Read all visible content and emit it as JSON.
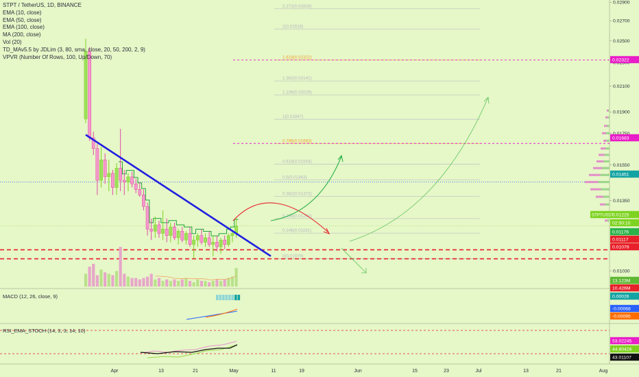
{
  "symbol_line": "STPT / TetherUS, 1D, BINANCE",
  "indicators": [
    "EMA (10, close)",
    "EMA (50, close)",
    "EMA (100, close)",
    "MA (200, close)",
    "Vol (20)",
    "TD_MAv5.5 by JDLim (3, 80, sma, close, 20, 50, 200, 2, 9)",
    "VPVR (Number Of Rows, 100, Up/Down, 70)"
  ],
  "macd_label": "MACD (12, 26, close, 9)",
  "rsi_label": "RSI_EMA_STOCH (14, 3, 3, 14, 10)",
  "price_axis_ticks": [
    "0.02900",
    "0.02700",
    "0.02500",
    "0.02300",
    "0.02100",
    "0.01900",
    "0.01750",
    "0.01550",
    "0.01350",
    "0.01030",
    "0.00970"
  ],
  "price_tags": [
    {
      "text": "0.02322",
      "color": "#e91ec8"
    },
    {
      "text": "0.01683",
      "color": "#e91ec8"
    },
    {
      "text": "0.01451",
      "color": "#14a3a3"
    },
    {
      "text": "0.01225",
      "color": "#7ed321",
      "ticker": "STPTUSDT"
    },
    {
      "text": "02:50:10",
      "color": "#7ed321"
    },
    {
      "text": "0.01176",
      "color": "#2bb34a"
    },
    {
      "text": "0.01117",
      "color": "#e8202a"
    },
    {
      "text": "0.01079",
      "color": "#e8202a"
    },
    {
      "text": "13.123M",
      "color": "#5fb833"
    },
    {
      "text": "10.426M",
      "color": "#e8202a"
    }
  ],
  "macd_tags": [
    {
      "text": "0.00026",
      "color": "#14a3a3"
    },
    {
      "text": "-0.00068",
      "color": "#2962ff"
    },
    {
      "text": "-0.00095",
      "color": "#ff6d00"
    }
  ],
  "rsi_tags": [
    {
      "text": "53.02245",
      "color": "#e91ec8"
    },
    {
      "text": "44.80426",
      "color": "#7ed321"
    },
    {
      "text": "43.01107",
      "color": "#111111"
    }
  ],
  "time_axis": [
    "Apr",
    "13",
    "21",
    "May",
    "11",
    "19",
    "Jun",
    "15",
    "23",
    "Jul",
    "13",
    "21",
    "Aug"
  ],
  "fib_levels": [
    {
      "ratio": "2.272",
      "price": "0.02828",
      "color": "#b5b8bf"
    },
    {
      "ratio": "2",
      "price": "0.02616",
      "color": "#b5b8bf"
    },
    {
      "ratio": "1.618",
      "price": "0.02322",
      "color": "#f0a030"
    },
    {
      "ratio": "1.382",
      "price": "0.02141",
      "color": "#b5b8bf"
    },
    {
      "ratio": "1.236",
      "price": "0.02029",
      "color": "#b5b8bf"
    },
    {
      "ratio": "1",
      "price": "0.01847",
      "color": "#b5b8bf"
    },
    {
      "ratio": "0.786",
      "price": "0.01683",
      "color": "#f0a030"
    },
    {
      "ratio": "0.618",
      "price": "0.01554",
      "color": "#b5b8bf"
    },
    {
      "ratio": "0.5",
      "price": "0.01463",
      "color": "#b5b8bf"
    },
    {
      "ratio": "0.382",
      "price": "0.01372",
      "color": "#b5b8bf"
    },
    {
      "ratio": "0.236",
      "price": "0.01260",
      "color": "#b5b8bf"
    },
    {
      "ratio": "0.146",
      "price": "0.01191",
      "color": "#b5b8bf"
    },
    {
      "ratio": "0",
      "price": "0.01079",
      "color": "#b5b8bf"
    }
  ],
  "chart_data": {
    "type": "candlestick",
    "symbol": "STPT / TetherUS",
    "interval": "1D",
    "exchange": "BINANCE",
    "y_scale": "log",
    "ylim": [
      0.0095,
      0.0292
    ],
    "annotations": {
      "horizontal_levels": [
        {
          "price": 0.02322,
          "style": "dashed",
          "color": "#e91ec8"
        },
        {
          "price": 0.01683,
          "style": "dashed",
          "color": "#e91ec8"
        },
        {
          "price": 0.01451,
          "style": "dotted",
          "color": "#2962ff"
        },
        {
          "price": 0.01117,
          "style": "dashed",
          "color": "#e8202a"
        },
        {
          "price": 0.01079,
          "style": "dashed",
          "color": "#e8202a"
        }
      ],
      "trendline": {
        "from": [
          "2020-03-26",
          0.0174
        ],
        "to": [
          "2020-05-10",
          0.0109
        ],
        "color": "#1f1fe0"
      }
    },
    "candles": [
      {
        "o": 0.0185,
        "h": 0.0252,
        "l": 0.0182,
        "c": 0.024
      },
      {
        "o": 0.024,
        "h": 0.0244,
        "l": 0.017,
        "c": 0.0172
      },
      {
        "o": 0.0172,
        "h": 0.0176,
        "l": 0.0161,
        "c": 0.0165
      },
      {
        "o": 0.0165,
        "h": 0.0168,
        "l": 0.0138,
        "c": 0.0146
      },
      {
        "o": 0.0146,
        "h": 0.0166,
        "l": 0.0142,
        "c": 0.0158
      },
      {
        "o": 0.0158,
        "h": 0.0162,
        "l": 0.0144,
        "c": 0.0148
      },
      {
        "o": 0.0148,
        "h": 0.0158,
        "l": 0.014,
        "c": 0.015
      },
      {
        "o": 0.015,
        "h": 0.0152,
        "l": 0.0138,
        "c": 0.0142
      },
      {
        "o": 0.0142,
        "h": 0.0156,
        "l": 0.0138,
        "c": 0.0153
      },
      {
        "o": 0.0153,
        "h": 0.0178,
        "l": 0.014,
        "c": 0.0146
      },
      {
        "o": 0.0146,
        "h": 0.0152,
        "l": 0.0138,
        "c": 0.0145
      },
      {
        "o": 0.0145,
        "h": 0.015,
        "l": 0.014,
        "c": 0.0148
      },
      {
        "o": 0.0148,
        "h": 0.0151,
        "l": 0.0142,
        "c": 0.0144
      },
      {
        "o": 0.0144,
        "h": 0.0147,
        "l": 0.0139,
        "c": 0.0141
      },
      {
        "o": 0.0141,
        "h": 0.0145,
        "l": 0.0137,
        "c": 0.0138
      },
      {
        "o": 0.0138,
        "h": 0.0141,
        "l": 0.013,
        "c": 0.0132
      },
      {
        "o": 0.0132,
        "h": 0.0134,
        "l": 0.0118,
        "c": 0.0121
      },
      {
        "o": 0.0121,
        "h": 0.0126,
        "l": 0.0116,
        "c": 0.012
      },
      {
        "o": 0.012,
        "h": 0.0127,
        "l": 0.0117,
        "c": 0.0123
      },
      {
        "o": 0.0123,
        "h": 0.0125,
        "l": 0.0117,
        "c": 0.0119
      },
      {
        "o": 0.0119,
        "h": 0.013,
        "l": 0.0116,
        "c": 0.0121
      },
      {
        "o": 0.0121,
        "h": 0.0126,
        "l": 0.0115,
        "c": 0.0118
      },
      {
        "o": 0.0118,
        "h": 0.0124,
        "l": 0.0115,
        "c": 0.0122
      },
      {
        "o": 0.0122,
        "h": 0.0124,
        "l": 0.0116,
        "c": 0.0117
      },
      {
        "o": 0.0117,
        "h": 0.0121,
        "l": 0.0114,
        "c": 0.012
      },
      {
        "o": 0.012,
        "h": 0.0122,
        "l": 0.0115,
        "c": 0.0116
      },
      {
        "o": 0.0116,
        "h": 0.012,
        "l": 0.0114,
        "c": 0.0119
      },
      {
        "o": 0.0119,
        "h": 0.0122,
        "l": 0.0113,
        "c": 0.0114
      },
      {
        "o": 0.0114,
        "h": 0.0118,
        "l": 0.0108,
        "c": 0.0116
      },
      {
        "o": 0.0116,
        "h": 0.0119,
        "l": 0.0113,
        "c": 0.0118
      },
      {
        "o": 0.0118,
        "h": 0.0121,
        "l": 0.0114,
        "c": 0.0115
      },
      {
        "o": 0.0115,
        "h": 0.0119,
        "l": 0.0113,
        "c": 0.0117
      },
      {
        "o": 0.0117,
        "h": 0.012,
        "l": 0.0113,
        "c": 0.0114
      },
      {
        "o": 0.0114,
        "h": 0.0118,
        "l": 0.0109,
        "c": 0.0115
      },
      {
        "o": 0.0115,
        "h": 0.0118,
        "l": 0.0111,
        "c": 0.0113
      },
      {
        "o": 0.0113,
        "h": 0.0117,
        "l": 0.011,
        "c": 0.0116
      },
      {
        "o": 0.0116,
        "h": 0.0118,
        "l": 0.0112,
        "c": 0.0114
      },
      {
        "o": 0.0114,
        "h": 0.0119,
        "l": 0.0113,
        "c": 0.0118
      },
      {
        "o": 0.0118,
        "h": 0.012,
        "l": 0.0115,
        "c": 0.0119
      },
      {
        "o": 0.0119,
        "h": 0.0126,
        "l": 0.0117,
        "c": 0.01225
      }
    ],
    "volume_unit": "M",
    "volume": [
      9,
      14,
      16,
      8,
      12,
      10,
      9,
      8,
      11,
      28,
      9,
      7,
      6,
      6,
      5,
      6,
      7,
      9,
      5,
      6,
      4,
      5,
      4,
      5,
      4,
      5,
      6,
      4,
      3,
      5,
      4,
      4,
      3,
      4,
      5,
      4,
      5,
      6,
      7,
      13.1
    ]
  }
}
